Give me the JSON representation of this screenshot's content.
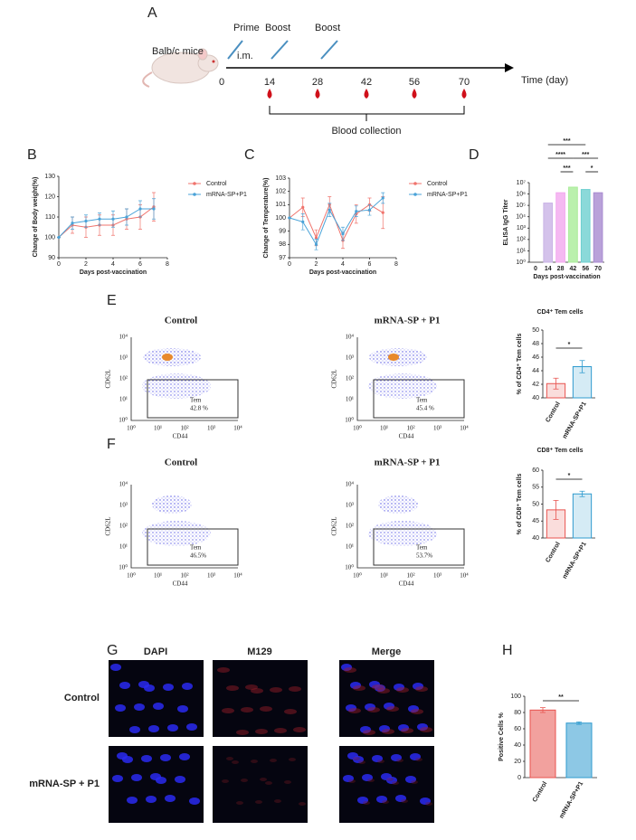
{
  "panel_labels": [
    "A",
    "B",
    "C",
    "D",
    "E",
    "F",
    "G",
    "H"
  ],
  "timeline": {
    "subject": "Balb/c mice",
    "events": [
      "Prime",
      "Boost",
      "Boost"
    ],
    "route": "i.m.",
    "days": [
      "0",
      "14",
      "28",
      "42",
      "56",
      "70"
    ],
    "axis_label": "Time (day)",
    "sampling": "Blood collection"
  },
  "flow": {
    "axis_x": "CD44",
    "axis_y": "CD62L",
    "ticks": [
      "10⁰",
      "10¹",
      "10²",
      "10³",
      "10⁴"
    ],
    "gate": "Tem",
    "plots": [
      {
        "title": "Control",
        "percent": "42.8 %"
      },
      {
        "title": "mRNA-SP + P1",
        "percent": "45.4 %"
      },
      {
        "title": "Control",
        "percent": "46.5%"
      },
      {
        "title": "mRNA-SP + P1",
        "percent": "53.7%"
      }
    ]
  },
  "microscopy": {
    "columns": [
      "DAPI",
      "M129",
      "Merge"
    ],
    "rows": [
      "Control",
      "mRNA-SP + P1"
    ]
  },
  "chart_data": [
    {
      "type": "line",
      "x_label": "Days post-vaccination",
      "y_label": "Change of Body weight(%)",
      "x": [
        0,
        1,
        2,
        3,
        4,
        5,
        6,
        7
      ],
      "series": [
        {
          "name": "Control",
          "color": "#f0736c",
          "values": [
            100,
            106,
            105,
            106,
            106,
            109,
            110,
            115
          ],
          "errors": [
            0,
            4,
            5,
            5,
            5,
            5,
            6,
            7
          ]
        },
        {
          "name": "mRNA-SP+P1",
          "color": "#4aa3d8",
          "values": [
            100,
            107,
            108,
            109,
            109,
            110,
            114,
            114
          ],
          "errors": [
            0,
            3,
            3,
            3,
            4,
            4,
            4,
            5
          ]
        }
      ],
      "xlim": [
        0,
        8
      ],
      "xticks": [
        0,
        2,
        4,
        6,
        8
      ],
      "ylim": [
        90,
        130
      ],
      "yticks": [
        90,
        100,
        110,
        120,
        130
      ],
      "legend": "outside right"
    },
    {
      "type": "line",
      "x_label": "Days post-vaccination",
      "y_label": "Change of Temperature(%)",
      "x": [
        0,
        1,
        2,
        3,
        4,
        5,
        6,
        7
      ],
      "series": [
        {
          "name": "Control",
          "color": "#f0736c",
          "values": [
            100,
            100.8,
            98.5,
            101,
            98.3,
            100.3,
            101,
            100.4
          ],
          "errors": [
            0,
            0.7,
            0.6,
            0.6,
            0.6,
            0.7,
            0.5,
            1.2
          ]
        },
        {
          "name": "mRNA-SP+P1",
          "color": "#4aa3d8",
          "values": [
            100,
            99.7,
            98,
            100.6,
            98.8,
            100.5,
            100.6,
            101.5
          ],
          "errors": [
            0,
            0.6,
            0.4,
            0.5,
            0.5,
            0.4,
            0.4,
            0.4
          ]
        }
      ],
      "xlim": [
        0,
        8
      ],
      "xticks": [
        0,
        2,
        4,
        6,
        8
      ],
      "ylim": [
        97,
        103
      ],
      "yticks": [
        97,
        98,
        99,
        100,
        101,
        102,
        103
      ],
      "legend": "outside right"
    },
    {
      "type": "bar",
      "log_scale": true,
      "x_label": "Days post-vaccination",
      "y_label": "ELISA IgG Titer",
      "categories": [
        "0",
        "14",
        "28",
        "42",
        "56",
        "70"
      ],
      "values": [
        null,
        160000,
        1300000,
        4000000,
        2500000,
        1300000
      ],
      "colors": [
        "#b89ad8",
        "#c9b3e6",
        "#f3a8ef",
        "#a9ec98",
        "#6ed0d0",
        "#a88ad0"
      ],
      "fill_opacity": 0.8,
      "ylim": [
        1,
        10000000
      ],
      "yticks": [
        {
          "value": 1,
          "label": "10⁰"
        },
        {
          "value": 10,
          "label": "10¹"
        },
        {
          "value": 100,
          "label": "10²"
        },
        {
          "value": 1000,
          "label": "10³"
        },
        {
          "value": 10000,
          "label": "10⁴"
        },
        {
          "value": 100000,
          "label": "10⁵"
        },
        {
          "value": 1000000,
          "label": "10⁶"
        },
        {
          "value": 10000000,
          "label": "10⁷"
        }
      ],
      "annotations": [
        "***",
        "****",
        "***",
        "***",
        "*"
      ]
    },
    {
      "type": "bar",
      "title": "CD4⁺ Tem cells",
      "y_label": "% of CD4⁺ Tem cells",
      "categories": [
        "Control",
        "mRNA-SP+P1"
      ],
      "values": [
        42.1,
        44.6
      ],
      "errors": [
        0.8,
        0.9
      ],
      "colors": [
        "#e8534f",
        "#2f9bcf"
      ],
      "fill_opacity": 0.2,
      "ylim": [
        40,
        50
      ],
      "yticks": [
        40,
        42,
        44,
        46,
        48,
        50
      ],
      "annotations": [
        "*"
      ]
    },
    {
      "type": "bar",
      "title": "CD8⁺ Tem cells",
      "y_label": "% of CD8⁺ Tem cells",
      "categories": [
        "Control",
        "mRNA-SP+P1"
      ],
      "values": [
        48.3,
        53.0
      ],
      "errors": [
        2.8,
        0.8
      ],
      "colors": [
        "#e8534f",
        "#2f9bcf"
      ],
      "fill_opacity": 0.2,
      "ylim": [
        40,
        60
      ],
      "yticks": [
        40,
        45,
        50,
        55,
        60
      ],
      "annotations": [
        "*"
      ]
    },
    {
      "type": "bar",
      "y_label": "Positive Cells %",
      "categories": [
        "Control",
        "mRNA-SP+P1"
      ],
      "values": [
        83,
        67
      ],
      "errors": [
        3,
        1.5
      ],
      "colors": [
        "#e8534f",
        "#2f9bcf"
      ],
      "fill_opacity": 0.55,
      "ylim": [
        0,
        100
      ],
      "yticks": [
        0,
        20,
        40,
        60,
        80,
        100
      ],
      "annotations": [
        "**"
      ]
    }
  ]
}
